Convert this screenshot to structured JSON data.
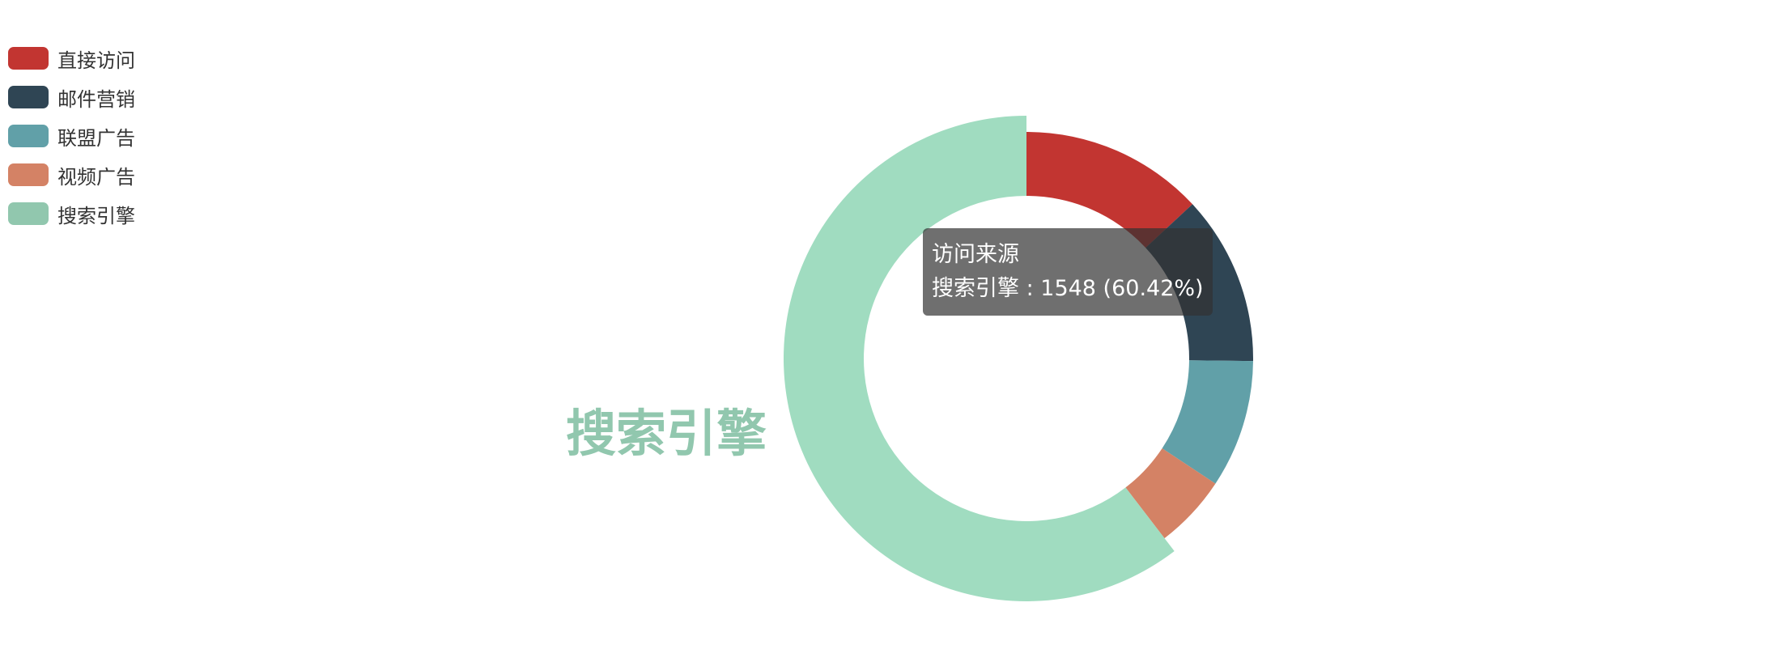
{
  "chart_data": {
    "type": "pie",
    "variant": "donut",
    "series_name": "访问来源",
    "slices": [
      {
        "name": "直接访问",
        "value": 335,
        "color": "#c23531"
      },
      {
        "name": "邮件营销",
        "value": 310,
        "color": "#2f4554"
      },
      {
        "name": "联盟广告",
        "value": 234,
        "color": "#61a0a8"
      },
      {
        "name": "视频广告",
        "value": 135,
        "color": "#d48265"
      },
      {
        "name": "搜索引擎",
        "value": 1548,
        "color": "#91c7ae",
        "highlighted": true,
        "highlight_color": "#a0dcc0"
      }
    ],
    "legend_position": "top-left",
    "emphasis_label": "搜索引擎"
  },
  "tooltip": {
    "title": "访问来源",
    "text": "搜索引擎 : 1548 (60.42%)"
  }
}
